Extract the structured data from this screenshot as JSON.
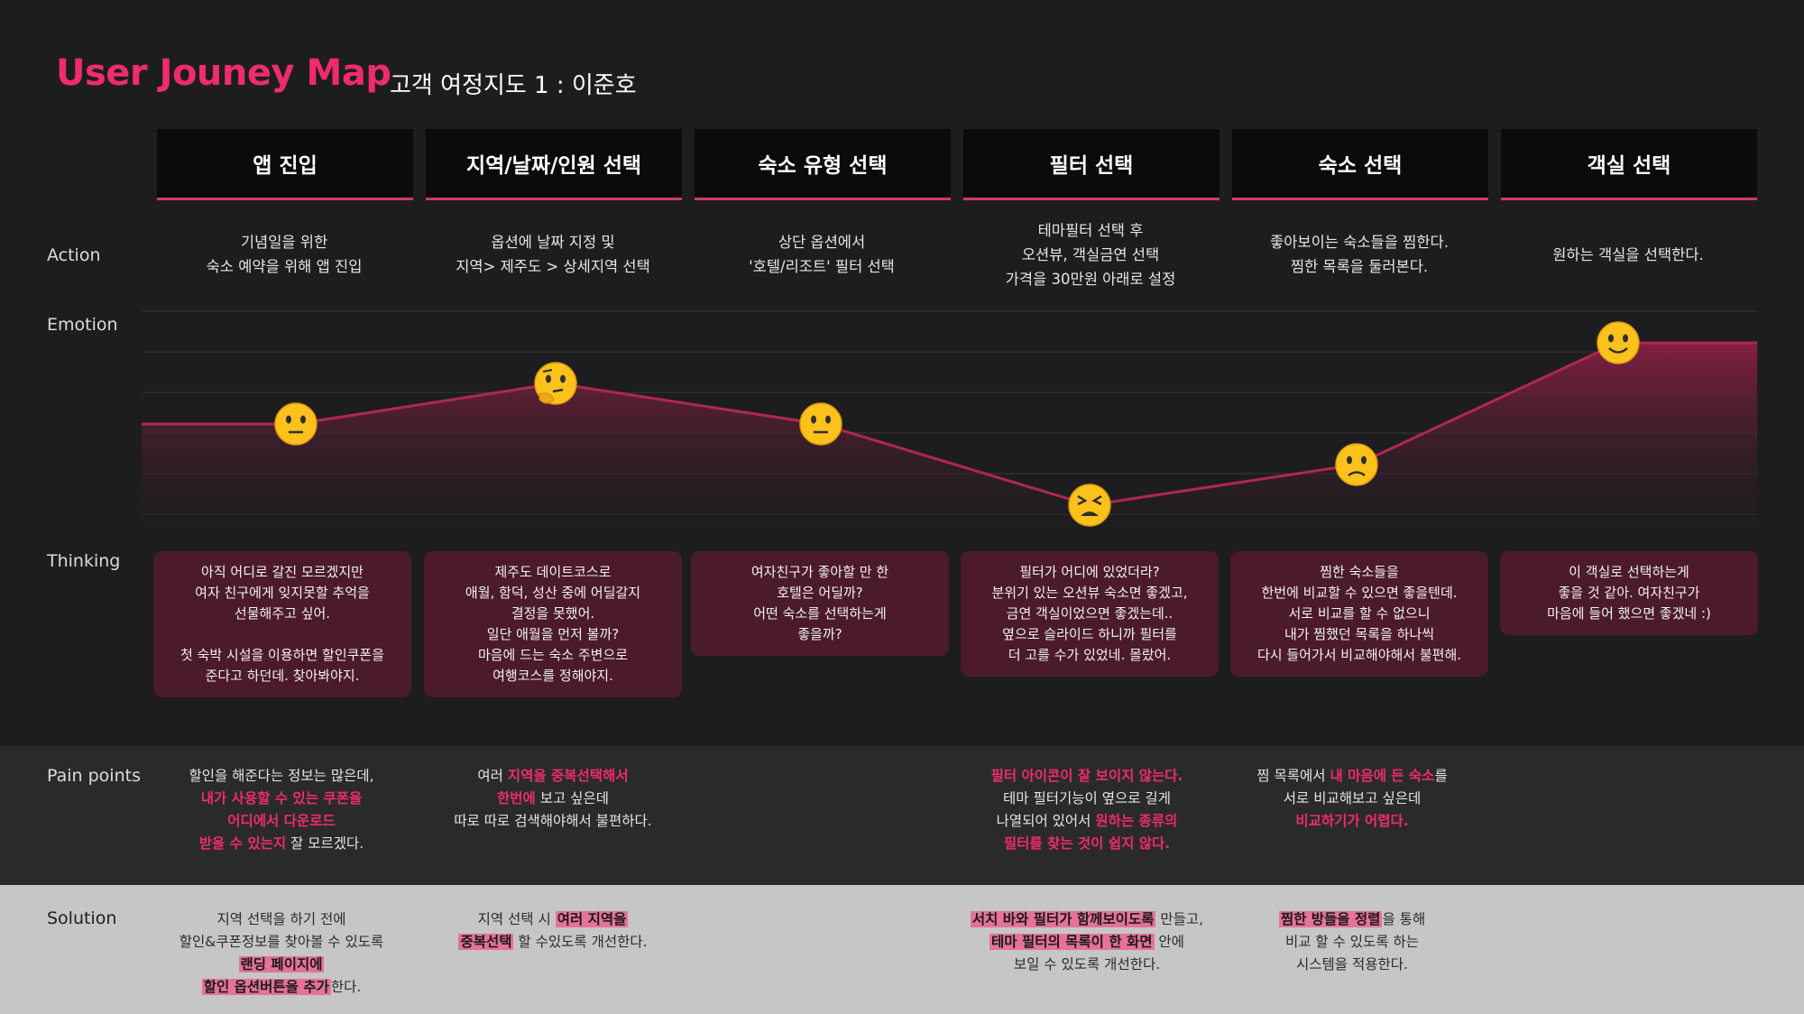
{
  "header": {
    "title": "User Jouney Map",
    "subtitle": "고객 여정지도 1 : 이준호"
  },
  "row_labels": {
    "action": "Action",
    "emotion": "Emotion",
    "thinking": "Thinking",
    "pain": "Pain points",
    "solution": "Solution"
  },
  "stages": [
    {
      "label": "앱 진입"
    },
    {
      "label": "지역/날짜/인원 선택"
    },
    {
      "label": "숙소 유형 선택"
    },
    {
      "label": "필터 선택"
    },
    {
      "label": "숙소 선택"
    },
    {
      "label": "객실 선택"
    }
  ],
  "actions": [
    "기념일을 위한\n숙소 예약을 위해 앱 진입",
    "옵션에 날짜 지정 및\n지역> 제주도 > 상세지역 선택",
    "상단 옵션에서\n'호텔/리조트' 필터 선택",
    "테마필터 선택 후\n오션뷰, 객실금연 선택\n가격을 30만원 아래로 설정",
    "좋아보이는 숙소들을 찜한다.\n찜한 목록을 둘러본다.",
    "원하는 객실을 선택한다."
  ],
  "emotions": [
    {
      "face": "neutral",
      "level": 3
    },
    {
      "face": "thinking",
      "level": 4
    },
    {
      "face": "neutral",
      "level": 3
    },
    {
      "face": "tired",
      "level": 1
    },
    {
      "face": "slightly-frowning",
      "level": 2
    },
    {
      "face": "smiling",
      "level": 5
    }
  ],
  "colors": {
    "accent": "#ee2b6e",
    "curve": "#b0284f",
    "think_bg": "#4b1a2b"
  },
  "thinking": [
    "아직 어디로 갈진 모르겠지만\n여자 친구에게 잊지못할 추억을\n선물해주고 싶어.\n\n첫 숙박 시설을 이용하면 할인쿠폰을\n준다고 하던데. 찾아봐야지.",
    "제주도 데이트코스로\n애월, 함덕, 성산 중에 어딜갈지\n결정을 못했어.\n일단 애월을 먼저 볼까?\n마음에 드는 숙소 주변으로\n여행코스를 정해야지.",
    "여자친구가 좋아할 만 한\n호텔은 어딜까?\n어떤 숙소를 선택하는게\n좋을까?",
    "필터가 어디에 있었더라?\n분위기 있는 오션뷰 숙소면 좋겠고,\n금연 객실이었으면 좋겠는데..\n옆으로 슬라이드 하니까 필터를\n더 고를 수가 있었네. 몰랐어.",
    "찜한 숙소들을\n한번에 비교할 수 있으면 좋을텐데.\n서로 비교를 할 수 없으니\n내가 찜했던 목록을 하나씩\n다시 들어가서 비교해야해서 불편해.",
    "이 객실로 선택하는게\n좋을 것 같아. 여자친구가\n마음에 들어 했으면 좋겠네 :)"
  ],
  "pain_points": [
    {
      "p1": "할인을 해준다는 정보는 많은데,",
      "p2": "내가 사용할 수 있는 쿠폰을",
      "p3": "어디에서 다운로드",
      "p4": "받을 수 있는지",
      "p5": " 잘 모르겠다."
    },
    {
      "p1": "여러 ",
      "p2": "지역을 중복선택해서",
      "p3": "한번에",
      "p4": " 보고 싶은데",
      "p5": "따로 따로 검색해야해서 불편하다."
    },
    {
      "p1": "필터 아이콘이 잘 보이지 않는다.",
      "p2": "테마 필터기능이 옆으로 길게",
      "p3": "나열되어 있어서 ",
      "p4": "원하는 종류의",
      "p5": "필터를 찾는 것이 쉽지 않다."
    },
    {
      "p1": "찜 목록에서 ",
      "p2": "내 마음에 든 숙소",
      "p3": "를",
      "p4": "서로 비교해보고 싶은데",
      "p5": "비교하기가 어렵다."
    }
  ],
  "solutions": [
    {
      "s1": "지역 선택을 하기 전에",
      "s2": "할인&쿠폰정보를 찾아볼 수 있도록",
      "s3": "랜딩 페이지에",
      "s4": "할인 옵션버튼을 추가",
      "s5": "한다."
    },
    {
      "s1": "지역 선택 시 ",
      "s2": "여러 지역을",
      "s3": "중복선택",
      "s4": " 할 수있도록 개선한다."
    },
    {
      "s1": "서치 바와 필터가 함께보이도록",
      "s2": " 만들고,",
      "s3": "테마 필터의 목록이 한 화면",
      "s4": " 안에",
      "s5": "보일 수 있도록 개선한다."
    },
    {
      "s1": "찜한 방들을 정렬",
      "s2": "을 통해",
      "s3": "비교 할 수 있도록 하는",
      "s4": "시스템을 적용한다."
    }
  ]
}
